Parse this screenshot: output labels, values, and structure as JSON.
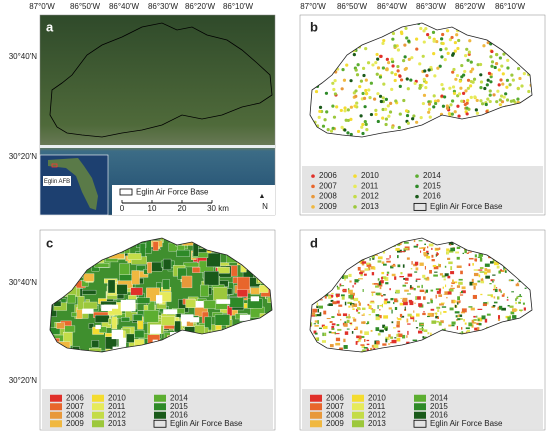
{
  "lon_labels": [
    "87°0'W",
    "86°50'W",
    "86°40'W",
    "86°30'W",
    "86°20'W",
    "86°10'W"
  ],
  "lat_labels": [
    "30°40'N",
    "30°20'N"
  ],
  "panels": [
    {
      "label": "a"
    },
    {
      "label": "b"
    },
    {
      "label": "c"
    },
    {
      "label": "d"
    }
  ],
  "boundary_label": "Eglin Air Force Base",
  "inset_label": "Eglin AFB",
  "scale_bar": [
    "0",
    "10",
    "20",
    "30 km"
  ],
  "north": "N",
  "legend": [
    {
      "name": "2006",
      "color": "#e0302a"
    },
    {
      "name": "2007",
      "color": "#e8662c"
    },
    {
      "name": "2008",
      "color": "#e8983a"
    },
    {
      "name": "2009",
      "color": "#f0b840"
    },
    {
      "name": "2010",
      "color": "#f4dc30"
    },
    {
      "name": "2011",
      "color": "#e6ea5a"
    },
    {
      "name": "2012",
      "color": "#c4dc48"
    },
    {
      "name": "2013",
      "color": "#9cc83c"
    },
    {
      "name": "2014",
      "color": "#5cae30"
    },
    {
      "name": "2015",
      "color": "#2e8a28"
    },
    {
      "name": "2016",
      "color": "#1a5a1a"
    }
  ]
}
